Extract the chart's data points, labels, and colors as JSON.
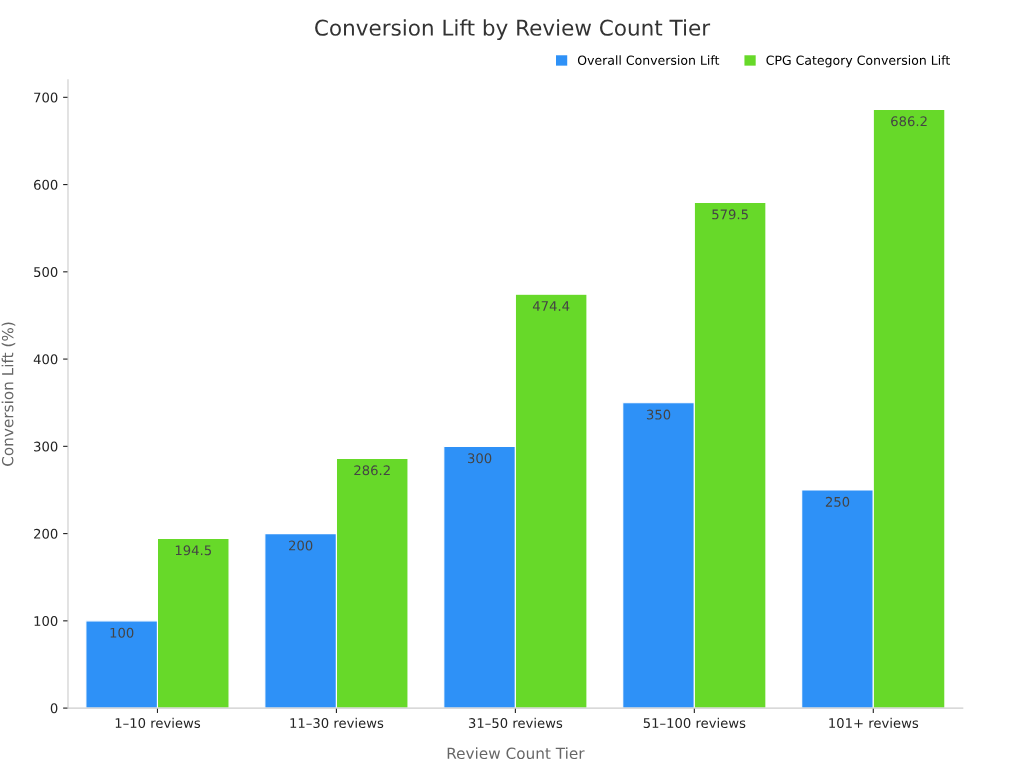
{
  "chart_data": {
    "type": "bar",
    "title": "Conversion Lift by Review Count Tier",
    "xlabel": "Review Count Tier",
    "ylabel": "Conversion Lift (%)",
    "categories": [
      "1–10 reviews",
      "11–30 reviews",
      "31–50 reviews",
      "51–100 reviews",
      "101+ reviews"
    ],
    "series": [
      {
        "name": "Overall Conversion Lift",
        "color": "#2e91f7",
        "values": [
          100,
          200,
          300,
          350,
          250
        ]
      },
      {
        "name": "CPG Category Conversion Lift",
        "color": "#67d929",
        "values": [
          194.5,
          286.2,
          474.4,
          579.5,
          686.2
        ]
      }
    ],
    "ylim": [
      0,
      720
    ],
    "yticks": [
      0,
      100,
      200,
      300,
      400,
      500,
      600,
      700
    ],
    "grid": false,
    "legend": "top right",
    "data_labels": true
  }
}
